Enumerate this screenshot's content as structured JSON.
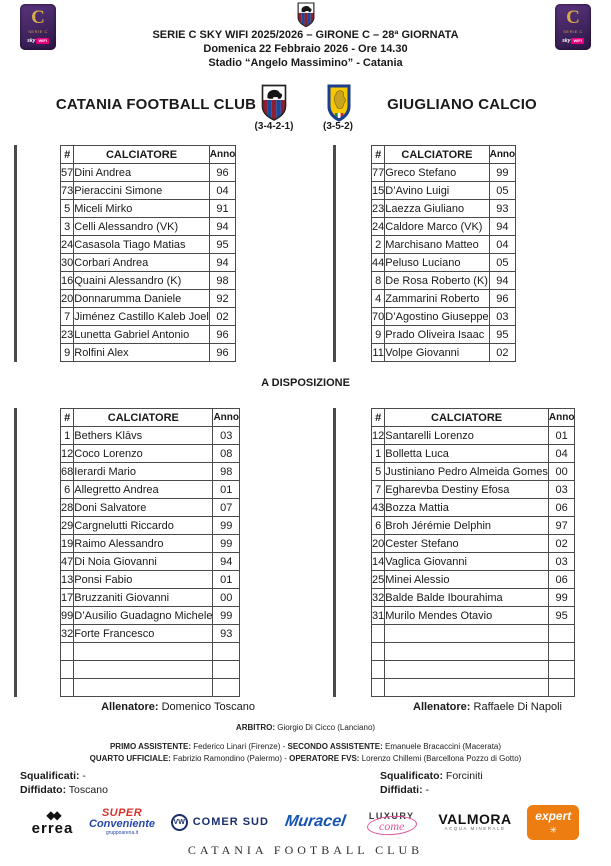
{
  "header": {
    "line1": "SERIE C SKY WIFI 2025/2026 – GIRONE C – 28ª GIORNATA",
    "line2": "Domenica 22 Febbraio 2026 - Ore 14.30",
    "line3": "Stadio “Angelo Massimino” - Catania",
    "league_logo": {
      "c": "C",
      "serie": "SERIE C",
      "sky": "sky",
      "wifi": "WIFI"
    }
  },
  "teams": {
    "home": {
      "name": "CATANIA FOOTBALL CLUB",
      "formation": "(3-4-2-1)"
    },
    "away": {
      "name": "GIUGLIANO CALCIO",
      "formation": "(3-5-2)"
    }
  },
  "tables": {
    "columns": {
      "num": "#",
      "player": "CALCIATORE",
      "year": "Anno"
    },
    "bench_title": "A DISPOSIZIONE",
    "home_xi": [
      {
        "num": "57",
        "name": "Dini Andrea",
        "year": "96"
      },
      {
        "num": "73",
        "name": "Pieraccini Simone",
        "year": "04"
      },
      {
        "num": "5",
        "name": "Miceli Mirko",
        "year": "91"
      },
      {
        "num": "3",
        "name": "Celli Alessandro (VK)",
        "year": "94"
      },
      {
        "num": "24",
        "name": "Casasola Tiago Matias",
        "year": "95"
      },
      {
        "num": "30",
        "name": "Corbari Andrea",
        "year": "94"
      },
      {
        "num": "16",
        "name": "Quaini Alessandro (K)",
        "year": "98"
      },
      {
        "num": "20",
        "name": "Donnarumma Daniele",
        "year": "92"
      },
      {
        "num": "7",
        "name": "Jiménez Castillo Kaleb Joel",
        "year": "02"
      },
      {
        "num": "23",
        "name": "Lunetta Gabriel Antonio",
        "year": "96"
      },
      {
        "num": "9",
        "name": "Rolfini Alex",
        "year": "96"
      }
    ],
    "away_xi": [
      {
        "num": "77",
        "name": "Greco Stefano",
        "year": "99"
      },
      {
        "num": "15",
        "name": "D’Avino Luigi",
        "year": "05"
      },
      {
        "num": "23",
        "name": "Laezza Giuliano",
        "year": "93"
      },
      {
        "num": "24",
        "name": "Caldore Marco (VK)",
        "year": "94"
      },
      {
        "num": "2",
        "name": "Marchisano Matteo",
        "year": "04"
      },
      {
        "num": "44",
        "name": "Peluso Luciano",
        "year": "05"
      },
      {
        "num": "8",
        "name": "De Rosa Roberto (K)",
        "year": "94"
      },
      {
        "num": "4",
        "name": "Zammarini Roberto",
        "year": "96"
      },
      {
        "num": "70",
        "name": "D’Agostino Giuseppe",
        "year": "03"
      },
      {
        "num": "9",
        "name": "Prado Oliveira Isaac",
        "year": "95"
      },
      {
        "num": "11",
        "name": "Volpe Giovanni",
        "year": "02"
      }
    ],
    "home_bench": [
      {
        "num": "1",
        "name": "Bethers Klāvs",
        "year": "03"
      },
      {
        "num": "12",
        "name": "Coco Lorenzo",
        "year": "08"
      },
      {
        "num": "68",
        "name": "Ierardi Mario",
        "year": "98"
      },
      {
        "num": "6",
        "name": "Allegretto Andrea",
        "year": "01"
      },
      {
        "num": "28",
        "name": "Doni Salvatore",
        "year": "07"
      },
      {
        "num": "29",
        "name": "Cargnelutti Riccardo",
        "year": "99"
      },
      {
        "num": "19",
        "name": "Raimo Alessandro",
        "year": "99"
      },
      {
        "num": "47",
        "name": "Di Noia Giovanni",
        "year": "94"
      },
      {
        "num": "13",
        "name": "Ponsi Fabio",
        "year": "01"
      },
      {
        "num": "17",
        "name": "Bruzzaniti Giovanni",
        "year": "00"
      },
      {
        "num": "99",
        "name": "D’Ausilio Guadagno Michele",
        "year": "99"
      },
      {
        "num": "32",
        "name": "Forte Francesco",
        "year": "93"
      }
    ],
    "away_bench": [
      {
        "num": "12",
        "name": "Santarelli Lorenzo",
        "year": "01"
      },
      {
        "num": "1",
        "name": "Bolletta Luca",
        "year": "04"
      },
      {
        "num": "5",
        "name": "Justiniano Pedro Almeida Gomes",
        "year": "00"
      },
      {
        "num": "7",
        "name": "Egharevba Destiny Efosa",
        "year": "03"
      },
      {
        "num": "43",
        "name": "Bozza Mattia",
        "year": "06"
      },
      {
        "num": "6",
        "name": "Broh Jérémie Delphin",
        "year": "97"
      },
      {
        "num": "20",
        "name": "Cester Stefano",
        "year": "02"
      },
      {
        "num": "14",
        "name": "Vaglica Giovanni",
        "year": "03"
      },
      {
        "num": "25",
        "name": "Minei Alessio",
        "year": "06"
      },
      {
        "num": "32",
        "name": "Balde Balde Ibourahima",
        "year": "99"
      },
      {
        "num": "31",
        "name": "Murilo Mendes Otavio",
        "year": "95"
      }
    ]
  },
  "coaches": {
    "label": "Allenatore:",
    "home": " Domenico Toscano",
    "away": " Raffaele Di Napoli"
  },
  "officials": {
    "referee_label": "ARBITRO:",
    "referee": " Giorgio Di Cicco (Lanciano)",
    "a1_label": "PRIMO ASSISTENTE:",
    "a1": " Federico Linari (Firenze) - ",
    "a2_label": "SECONDO ASSISTENTE:",
    "a2": " Emanuele Bracaccini (Macerata)",
    "q_label": "QUARTO UFFICIALE:",
    "q": " Fabrizio Ramondino (Palermo) - ",
    "fvs_label": "OPERATORE FVS:",
    "fvs": " Lorenzo Chillemi (Barcellona Pozzo di Gotto)"
  },
  "discipline": {
    "home": {
      "l1b": "Squalificati:",
      "l1": " -",
      "l2b": "Diffidato:",
      "l2": " Toscano"
    },
    "away": {
      "l1b": "Squalificato:",
      "l1": " Forciniti",
      "l2b": "Diffidati:",
      "l2": " -"
    }
  },
  "sponsors": {
    "errea": "errea",
    "errea_icon": "◆◆",
    "super_top": "SUPER",
    "super_mid": "Conveniente",
    "super_sub": "gruppoarena.it",
    "vw": "VW",
    "comersud": "COMER SUD",
    "muracel": "Muracel",
    "luxury_top": "LUXURY",
    "luxury_script": "come",
    "valmora": "VALMORA",
    "valmora_sub": "ACQUA MINERALE",
    "expert": "expert",
    "expert_star": "✳"
  },
  "footer": "CATANIA FOOTBALL CLUB",
  "colors": {
    "yellow_card": "#ffe600",
    "red_card": "#cf0a0a",
    "serie_c_purple": "#3a2057",
    "serie_c_gold": "#d7a948",
    "sky_magenta": "#e6007e",
    "catania_blue": "#174a9e",
    "catania_red": "#8f1f2e",
    "giugliano_yellow": "#f6c800",
    "giugliano_blue": "#1b3f8f"
  }
}
